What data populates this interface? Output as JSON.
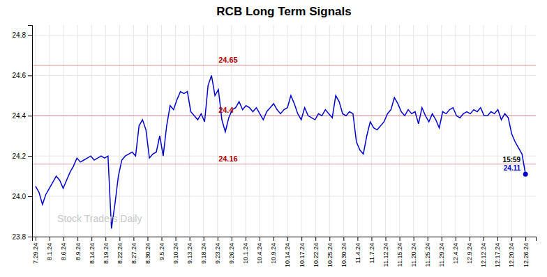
{
  "chart_data": {
    "type": "line",
    "title": "RCB Long Term Signals",
    "color": "#0000cc",
    "grid": true,
    "xlim": [
      -1,
      145
    ],
    "xticks": [
      {
        "value": 0,
        "label": "7.29.24"
      },
      {
        "value": 4.0571,
        "label": "8.1.24"
      },
      {
        "value": 8.1143,
        "label": "8.6.24"
      },
      {
        "value": 12.1714,
        "label": "8.9.24"
      },
      {
        "value": 16.2286,
        "label": "8.14.24"
      },
      {
        "value": 20.2857,
        "label": "8.19.24"
      },
      {
        "value": 24.3429,
        "label": "8.22.24"
      },
      {
        "value": 28.4,
        "label": "8.27.24"
      },
      {
        "value": 32.4571,
        "label": "8.30.24"
      },
      {
        "value": 36.5143,
        "label": "9.5.24"
      },
      {
        "value": 40.5714,
        "label": "9.10.24"
      },
      {
        "value": 44.6286,
        "label": "9.13.24"
      },
      {
        "value": 48.6857,
        "label": "9.18.24"
      },
      {
        "value": 52.7429,
        "label": "9.23.24"
      },
      {
        "value": 56.8,
        "label": "9.26.24"
      },
      {
        "value": 60.8571,
        "label": "10.1.24"
      },
      {
        "value": 64.9143,
        "label": "10.4.24"
      },
      {
        "value": 68.9714,
        "label": "10.9.24"
      },
      {
        "value": 73.0286,
        "label": "10.14.24"
      },
      {
        "value": 77.0857,
        "label": "10.17.24"
      },
      {
        "value": 81.1429,
        "label": "10.22.24"
      },
      {
        "value": 85.2,
        "label": "10.25.24"
      },
      {
        "value": 89.2571,
        "label": "10.30.24"
      },
      {
        "value": 93.3143,
        "label": "11.4.24"
      },
      {
        "value": 97.3714,
        "label": "11.7.24"
      },
      {
        "value": 101.4286,
        "label": "11.12.24"
      },
      {
        "value": 105.4857,
        "label": "11.15.24"
      },
      {
        "value": 109.5429,
        "label": "11.20.24"
      },
      {
        "value": 113.6,
        "label": "11.25.24"
      },
      {
        "value": 117.6571,
        "label": "11.29.24"
      },
      {
        "value": 121.7143,
        "label": "12.4.24"
      },
      {
        "value": 125.7714,
        "label": "12.9.24"
      },
      {
        "value": 129.8286,
        "label": "12.12.24"
      },
      {
        "value": 133.8857,
        "label": "12.17.24"
      },
      {
        "value": 137.9429,
        "label": "12.20.24"
      },
      {
        "value": 142,
        "label": "12.26.24"
      }
    ],
    "ylim": [
      23.8,
      24.85
    ],
    "yticks": [
      23.8,
      {
        "value": 24.0,
        "label": "24.0"
      },
      24.2,
      24.4,
      24.6,
      24.8
    ],
    "x": [
      0,
      1,
      2,
      3,
      4,
      5,
      6,
      7,
      8,
      9,
      10,
      11,
      12,
      13,
      14,
      15,
      16,
      17,
      18,
      19,
      20,
      21,
      22,
      23,
      24,
      25,
      26,
      27,
      28,
      29,
      30,
      31,
      32,
      33,
      34,
      35,
      36,
      37,
      38,
      39,
      40,
      41,
      42,
      43,
      44,
      45,
      46,
      47,
      48,
      49,
      50,
      51,
      52,
      53,
      54,
      55,
      56,
      57,
      58,
      59,
      60,
      61,
      62,
      63,
      64,
      65,
      66,
      67,
      68,
      69,
      70,
      71,
      72,
      73,
      74,
      75,
      76,
      77,
      78,
      79,
      80,
      81,
      82,
      83,
      84,
      85,
      86,
      87,
      88,
      89,
      90,
      91,
      92,
      93,
      94,
      95,
      96,
      97,
      98,
      99,
      100,
      101,
      102,
      103,
      104,
      105,
      106,
      107,
      108,
      109,
      110,
      111,
      112,
      113,
      114,
      115,
      116,
      117,
      118,
      119,
      120,
      121,
      122,
      123,
      124,
      125,
      126,
      127,
      128,
      129,
      130,
      131,
      132,
      133,
      134,
      135,
      136,
      137,
      138,
      139,
      140,
      141,
      142
    ],
    "values": [
      24.05,
      24.02,
      23.96,
      24.01,
      24.04,
      24.07,
      24.1,
      24.08,
      24.04,
      24.08,
      24.12,
      24.15,
      24.19,
      24.17,
      24.18,
      24.19,
      24.2,
      24.18,
      24.19,
      24.2,
      24.19,
      24.2,
      23.84,
      23.96,
      24.1,
      24.18,
      24.2,
      24.21,
      24.22,
      24.2,
      24.35,
      24.38,
      24.33,
      24.19,
      24.21,
      24.22,
      24.3,
      24.2,
      24.35,
      24.45,
      24.43,
      24.48,
      24.52,
      24.51,
      24.52,
      24.42,
      24.4,
      24.38,
      24.41,
      24.37,
      24.55,
      24.6,
      24.5,
      24.53,
      24.38,
      24.32,
      24.39,
      24.43,
      24.44,
      24.47,
      24.43,
      24.45,
      24.44,
      24.42,
      24.44,
      24.41,
      24.38,
      24.42,
      24.44,
      24.46,
      24.43,
      24.41,
      24.43,
      24.44,
      24.5,
      24.46,
      24.41,
      24.38,
      24.44,
      24.4,
      24.39,
      24.38,
      24.41,
      24.4,
      24.43,
      24.41,
      24.39,
      24.5,
      24.47,
      24.41,
      24.4,
      24.42,
      24.41,
      24.27,
      24.23,
      24.21,
      24.3,
      24.37,
      24.34,
      24.33,
      24.35,
      24.37,
      24.41,
      24.43,
      24.49,
      24.46,
      24.42,
      24.4,
      24.43,
      24.41,
      24.42,
      24.36,
      24.44,
      24.4,
      24.37,
      24.41,
      24.38,
      24.34,
      24.42,
      24.41,
      24.43,
      24.44,
      24.4,
      24.39,
      24.41,
      24.42,
      24.41,
      24.43,
      24.42,
      24.44,
      24.4,
      24.4,
      24.42,
      24.41,
      24.43,
      24.38,
      24.41,
      24.39,
      24.31,
      24.27,
      24.24,
      24.21,
      24.11
    ],
    "annotations": [
      {
        "type": "hline",
        "y": 24.65,
        "text": "24.65",
        "color": "#aa0000"
      },
      {
        "type": "hline",
        "y": 24.4,
        "text": "24.4",
        "color": "#aa0000"
      },
      {
        "type": "hline",
        "y": 24.16,
        "text": "24.16",
        "color": "#aa0000"
      },
      {
        "type": "point_label",
        "x": 142,
        "y": 24.11,
        "text": "15:59",
        "color": "#000000"
      },
      {
        "type": "point_label",
        "x": 142,
        "y": 24.11,
        "text": "24.11",
        "color": "#0000cc"
      },
      {
        "type": "watermark",
        "text": "Stock Traders Daily",
        "color": "#c8c8c8"
      }
    ]
  }
}
